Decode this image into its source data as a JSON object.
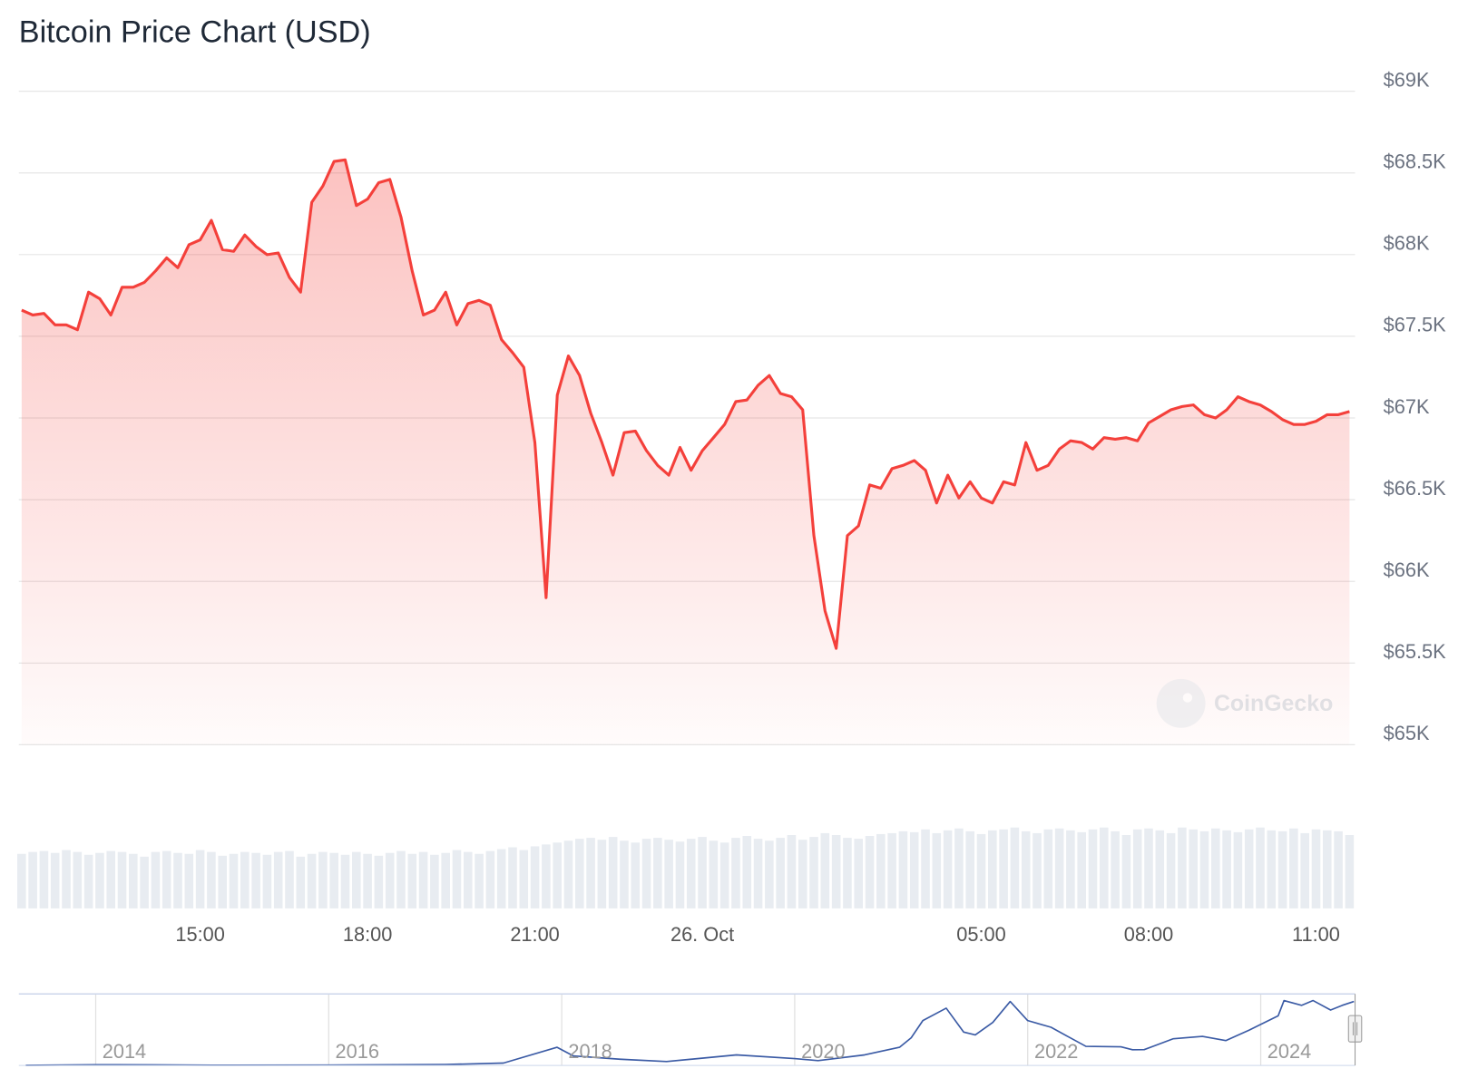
{
  "chart_data": [
    {
      "type": "area",
      "title": "Bitcoin Price Chart (USD)",
      "watermark": "CoinGecko",
      "color": "#f4403b",
      "grid": true,
      "x": [
        11.8,
        12,
        12.2,
        12.4,
        12.6,
        12.8,
        13,
        13.2,
        13.4,
        13.6,
        13.8,
        14,
        14.2,
        14.4,
        14.6,
        14.8,
        15,
        15.2,
        15.4,
        15.6,
        15.8,
        16,
        16.2,
        16.4,
        16.6,
        16.8,
        17,
        17.2,
        17.4,
        17.6,
        17.8,
        18,
        18.2,
        18.4,
        18.6,
        18.8,
        19,
        19.2,
        19.4,
        19.6,
        19.8,
        20,
        20.2,
        20.4,
        20.6,
        20.8,
        21,
        21.2,
        21.4,
        21.6,
        21.8,
        22,
        22.2,
        22.4,
        22.6,
        22.8,
        23,
        23.2,
        23.4,
        23.6,
        23.8,
        24,
        24.2,
        24.4,
        24.6,
        24.8,
        25,
        25.2,
        25.4,
        25.6,
        25.8,
        26,
        26.2,
        26.4,
        26.6,
        26.8,
        27,
        27.2,
        27.4,
        27.6,
        27.8,
        28,
        28.2,
        28.4,
        28.6,
        28.8,
        29,
        29.2,
        29.4,
        29.6,
        29.8,
        30,
        30.2,
        30.4,
        30.6,
        30.8,
        31,
        31.2,
        31.4,
        31.6,
        31.8,
        32,
        32.2,
        32.4,
        32.6,
        32.8,
        33,
        33.2,
        33.4,
        33.6,
        33.8,
        34,
        34.2,
        34.4,
        34.6,
        34.8,
        35,
        35.2,
        35.4,
        35.6
      ],
      "values": [
        67660,
        67630,
        67640,
        67570,
        67570,
        67540,
        67770,
        67730,
        67630,
        67800,
        67800,
        67830,
        67900,
        67980,
        67920,
        68060,
        68090,
        68210,
        68030,
        68020,
        68120,
        68050,
        68000,
        68010,
        67860,
        67770,
        68320,
        68420,
        68570,
        68580,
        68300,
        68340,
        68440,
        68460,
        68230,
        67900,
        67630,
        67660,
        67770,
        67570,
        67700,
        67720,
        67690,
        67480,
        67400,
        67310,
        66850,
        65900,
        67140,
        67380,
        67260,
        67030,
        66850,
        66650,
        66910,
        66920,
        66800,
        66710,
        66650,
        66820,
        66680,
        66800,
        66880,
        66960,
        67100,
        67110,
        67200,
        67260,
        67150,
        67130,
        67050,
        66280,
        65820,
        65590,
        66280,
        66340,
        66590,
        66570,
        66690,
        66710,
        66740,
        66680,
        66480,
        66650,
        66510,
        66610,
        66510,
        66480,
        66610,
        66590,
        66850,
        66680,
        66710,
        66810,
        66860,
        66850,
        66810,
        66880,
        66870,
        66880,
        66860,
        66970,
        67010,
        67050,
        67070,
        67080,
        67020,
        67000,
        67050,
        67130,
        67100,
        67080,
        67040,
        66990,
        66960,
        66960,
        66980,
        67020,
        67020,
        67040
      ],
      "volume": [
        58,
        60,
        61,
        59,
        62,
        60,
        57,
        59,
        61,
        60,
        58,
        55,
        60,
        61,
        59,
        58,
        62,
        60,
        56,
        58,
        60,
        59,
        57,
        60,
        61,
        55,
        58,
        60,
        59,
        57,
        60,
        58,
        56,
        59,
        61,
        58,
        60,
        57,
        59,
        62,
        60,
        58,
        61,
        63,
        65,
        62,
        66,
        68,
        70,
        72,
        74,
        75,
        73,
        76,
        72,
        70,
        74,
        75,
        73,
        71,
        74,
        76,
        72,
        70,
        75,
        77,
        74,
        72,
        75,
        78,
        73,
        76,
        80,
        78,
        75,
        74,
        77,
        79,
        80,
        82,
        81,
        84,
        80,
        83,
        85,
        82,
        79,
        83,
        84,
        86,
        82,
        80,
        84,
        85,
        83,
        81,
        84,
        86,
        82,
        78,
        84,
        85,
        83,
        80,
        86,
        84,
        82,
        85,
        83,
        81,
        84,
        86,
        83,
        82,
        85,
        80,
        84,
        83,
        82,
        78
      ],
      "xlim": [
        11.75,
        35.7
      ],
      "xticks": [
        {
          "value": 15,
          "label": "15:00"
        },
        {
          "value": 18,
          "label": "18:00"
        },
        {
          "value": 21,
          "label": "21:00"
        },
        {
          "value": 24,
          "label": "26. Oct"
        },
        {
          "value": 29,
          "label": "05:00"
        },
        {
          "value": 32,
          "label": "08:00"
        },
        {
          "value": 35,
          "label": "11:00"
        }
      ],
      "ylim": [
        65000,
        69000
      ],
      "yticks": [
        {
          "value": 65000,
          "label": "$65K"
        },
        {
          "value": 65500,
          "label": "$65.5K"
        },
        {
          "value": 66000,
          "label": "$66K"
        },
        {
          "value": 66500,
          "label": "$66.5K"
        },
        {
          "value": 67000,
          "label": "$67K"
        },
        {
          "value": 67500,
          "label": "$67.5K"
        },
        {
          "value": 68000,
          "label": "$68K"
        },
        {
          "value": 68500,
          "label": "$68.5K"
        },
        {
          "value": 69000,
          "label": "$69K"
        }
      ]
    },
    {
      "type": "line",
      "color": "#3b5ba5",
      "x": [
        2013.4,
        2014.0,
        2014.5,
        2015.0,
        2016.0,
        2017.0,
        2017.5,
        2017.96,
        2018.1,
        2018.5,
        2018.9,
        2019.5,
        2020.0,
        2020.2,
        2020.6,
        2020.9,
        2021.0,
        2021.1,
        2021.3,
        2021.45,
        2021.55,
        2021.7,
        2021.85,
        2022.0,
        2022.2,
        2022.35,
        2022.5,
        2022.8,
        2022.9,
        2023.0,
        2023.25,
        2023.5,
        2023.7,
        2023.9,
        2024.0,
        2024.15,
        2024.2,
        2024.35,
        2024.45,
        2024.6,
        2024.7,
        2024.8
      ],
      "values": [
        120,
        800,
        600,
        300,
        430,
        1000,
        2500,
        19000,
        10000,
        6500,
        4000,
        11000,
        7200,
        5000,
        11000,
        19000,
        29000,
        47000,
        60000,
        35000,
        32000,
        45000,
        67000,
        47000,
        40000,
        30000,
        20000,
        19500,
        16500,
        16600,
        28000,
        30500,
        26000,
        37000,
        43000,
        52000,
        68000,
        63000,
        68000,
        58000,
        63000,
        67000
      ],
      "xlim": [
        2013.34,
        2024.81
      ],
      "xticks": [
        2014,
        2016,
        2018,
        2020,
        2022,
        2024
      ]
    }
  ]
}
